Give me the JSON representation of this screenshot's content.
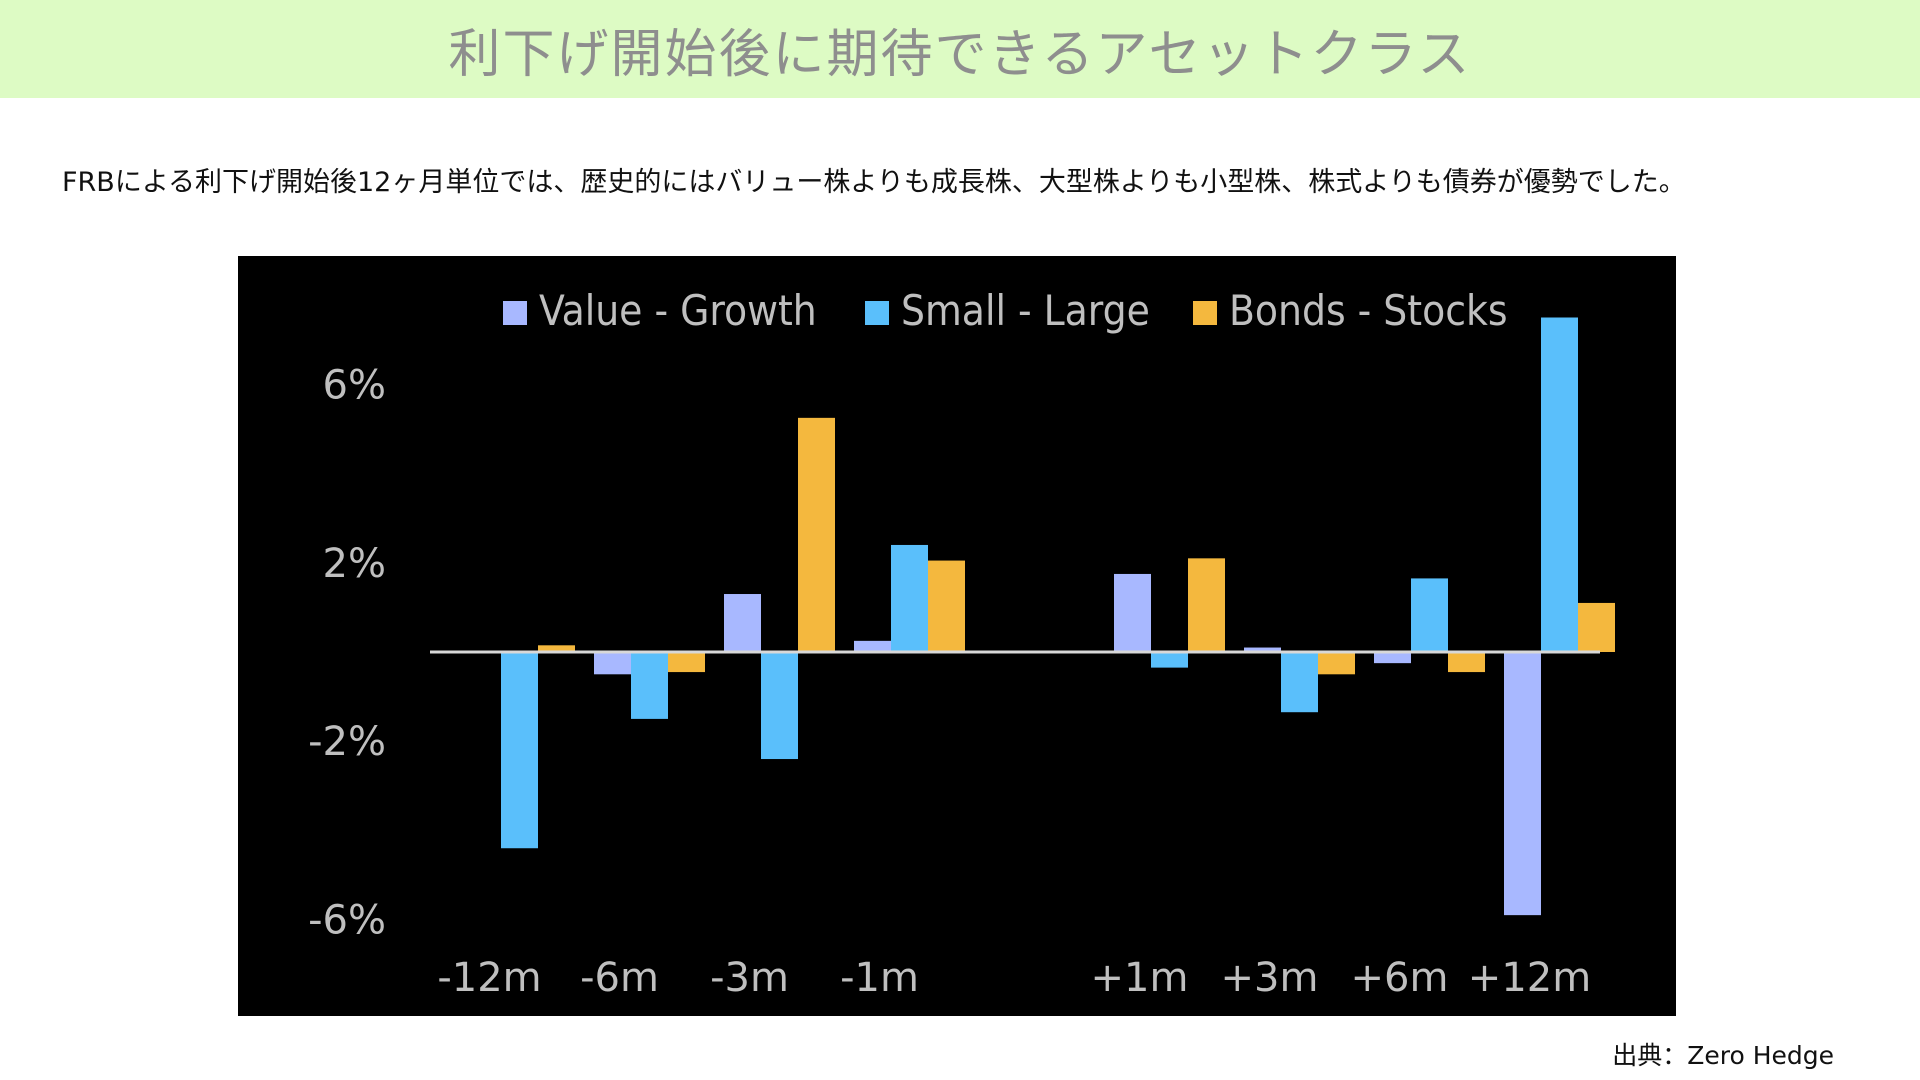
{
  "page": {
    "title": "利下げ開始後に期待できるアセットクラス",
    "subtitle": "FRBによる利下げ開始後12ヶ月単位では、歴史的にはバリュー株よりも成長株、大型株よりも小型株、株式よりも債券が優勢でした。",
    "source": "出典：Zero Hedge"
  },
  "chart_data": {
    "type": "bar",
    "categories": [
      "-12m",
      "-6m",
      "-3m",
      "-1m",
      "",
      "+1m",
      "+3m",
      "+6m",
      "+12m"
    ],
    "series": [
      {
        "name": "Value - Growth",
        "color": "#a8b8ff",
        "values": [
          0,
          -0.5,
          1.3,
          0.25,
          0,
          1.75,
          0.1,
          -0.25,
          -5.9
        ]
      },
      {
        "name": "Small - Large",
        "color": "#5abffb",
        "values": [
          -4.4,
          -1.5,
          -2.4,
          2.4,
          0,
          -0.35,
          -1.35,
          1.65,
          7.5
        ]
      },
      {
        "name": "Bonds - Stocks",
        "color": "#f4b83e",
        "values": [
          0.15,
          -0.45,
          5.25,
          2.05,
          0,
          2.1,
          -0.5,
          -0.45,
          1.1
        ]
      }
    ],
    "yticks": [
      6,
      2,
      -2,
      -6
    ],
    "ytick_labels": [
      "6%",
      "2%",
      "-2%",
      "-6%"
    ],
    "ylim": [
      -8,
      8
    ],
    "grid": false,
    "legend": "top",
    "background": "#000000",
    "text_color": "#bfbfbf"
  }
}
